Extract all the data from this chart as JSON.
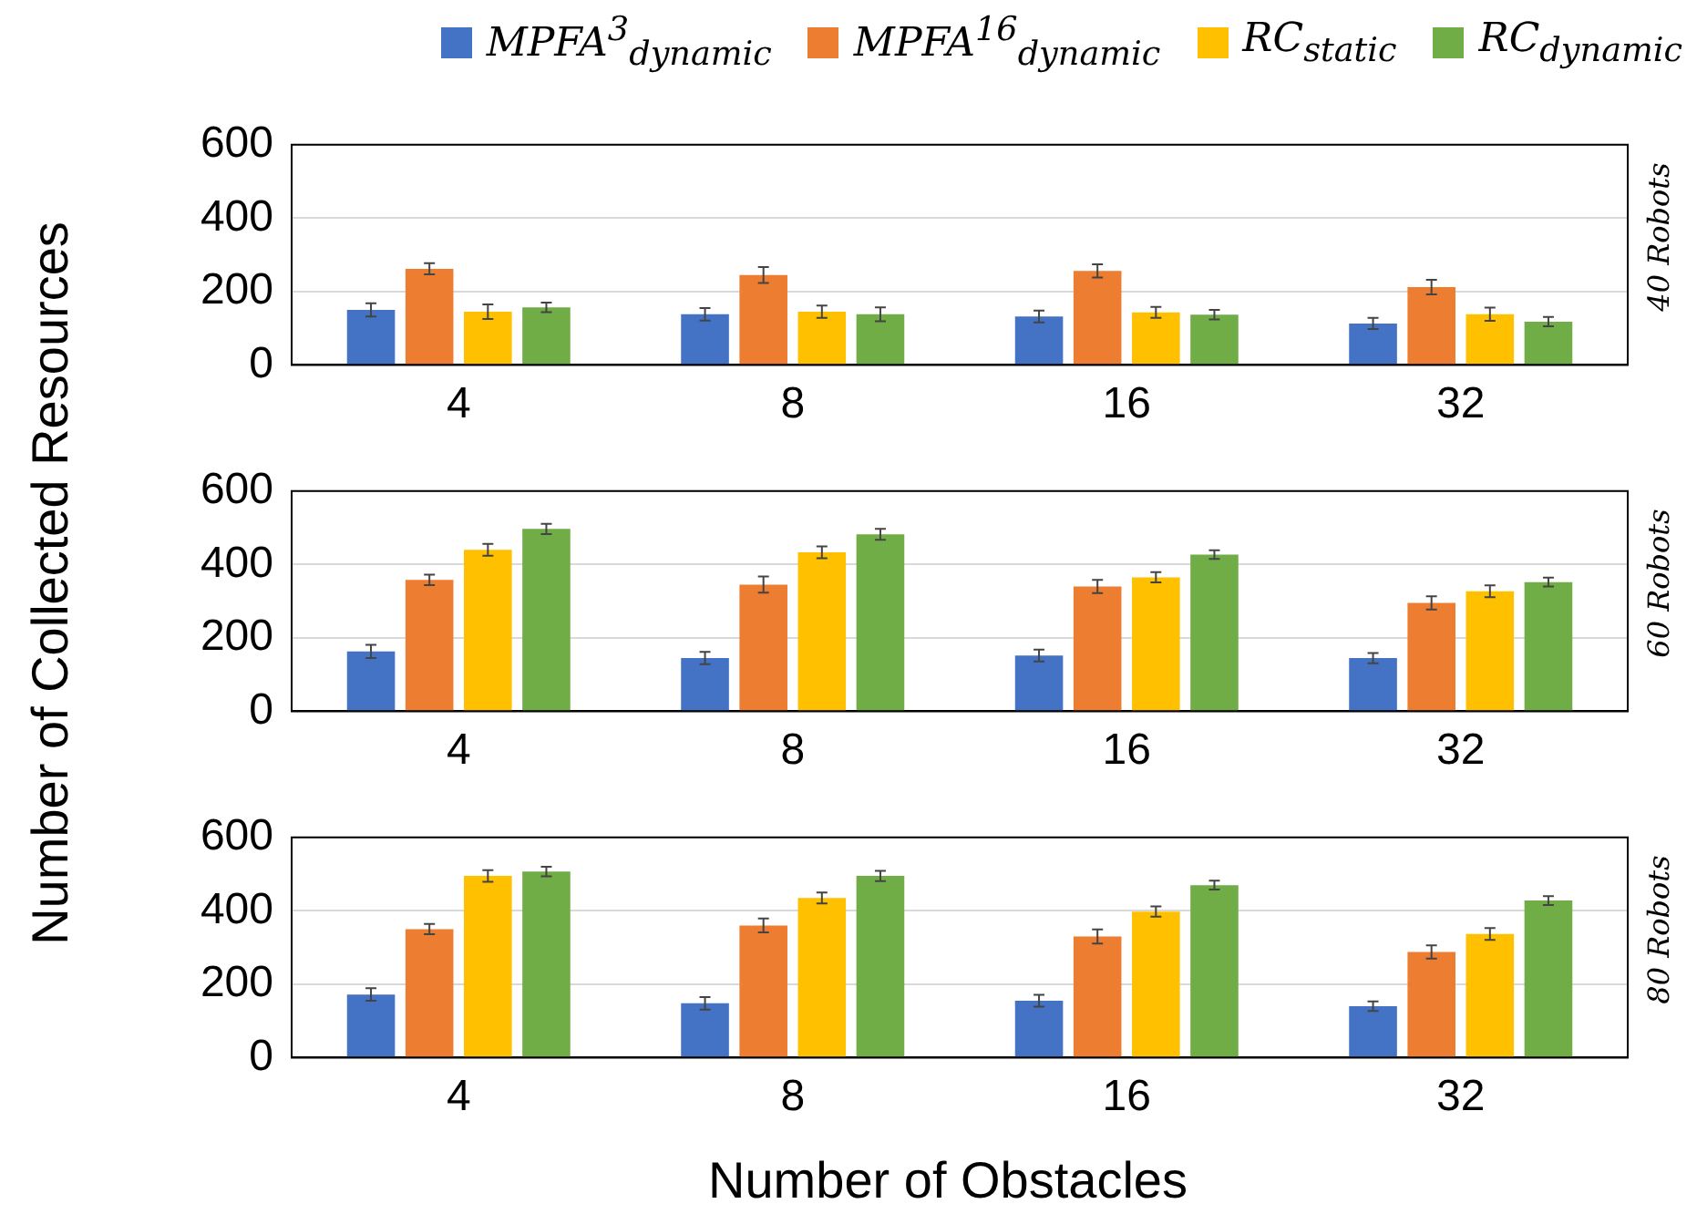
{
  "chart_data": [
    {
      "type": "bar",
      "categories": [
        "4",
        "8",
        "16",
        "32"
      ],
      "y2label": "40 Robots",
      "ylim": [
        0,
        600
      ],
      "yticks": [
        0,
        200,
        400,
        600
      ],
      "grid": "y",
      "legend": "top",
      "series": [
        {
          "name": "MPFA$^{3}$$_{dynamic}$",
          "color": "#4472c4",
          "values": [
            150,
            138,
            132,
            113
          ],
          "errors": [
            18,
            17,
            16,
            15
          ]
        },
        {
          "name": "MPFA$^{16}$$_{dynamic}$",
          "color": "#ed7d31",
          "values": [
            262,
            245,
            256,
            212
          ],
          "errors": [
            15,
            22,
            18,
            20
          ]
        },
        {
          "name": "RC$_{static}$",
          "color": "#ffc000",
          "values": [
            145,
            145,
            143,
            138
          ],
          "errors": [
            20,
            17,
            15,
            18
          ]
        },
        {
          "name": "RC$_{dynamic}$",
          "color": "#70ad47",
          "values": [
            157,
            138,
            137,
            118
          ],
          "errors": [
            13,
            19,
            13,
            13
          ]
        }
      ]
    },
    {
      "type": "bar",
      "categories": [
        "4",
        "8",
        "16",
        "32"
      ],
      "ylabel": "Number of Collected Resources",
      "y2label": "60 Robots",
      "ylim": [
        0,
        600
      ],
      "yticks": [
        0,
        200,
        400,
        600
      ],
      "grid": "y",
      "series": [
        {
          "color": "#4472c4",
          "values": [
            163,
            145,
            152,
            145
          ],
          "errors": [
            18,
            17,
            16,
            14
          ]
        },
        {
          "color": "#ed7d31",
          "values": [
            358,
            345,
            340,
            295
          ],
          "errors": [
            14,
            22,
            18,
            18
          ]
        },
        {
          "color": "#ffc000",
          "values": [
            440,
            433,
            365,
            327
          ],
          "errors": [
            16,
            16,
            14,
            16
          ]
        },
        {
          "color": "#70ad47",
          "values": [
            497,
            482,
            427,
            352
          ],
          "errors": [
            14,
            15,
            12,
            12
          ]
        }
      ]
    },
    {
      "type": "bar",
      "categories": [
        "4",
        "8",
        "16",
        "32"
      ],
      "xlabel": "Number of Obstacles",
      "y2label": "80 Robots",
      "ylim": [
        0,
        600
      ],
      "yticks": [
        0,
        200,
        400,
        600
      ],
      "grid": "y",
      "series": [
        {
          "color": "#4472c4",
          "values": [
            172,
            148,
            155,
            140
          ],
          "errors": [
            17,
            17,
            16,
            13
          ]
        },
        {
          "color": "#ed7d31",
          "values": [
            350,
            360,
            330,
            288
          ],
          "errors": [
            14,
            19,
            19,
            18
          ]
        },
        {
          "color": "#ffc000",
          "values": [
            495,
            435,
            398,
            337
          ],
          "errors": [
            16,
            15,
            14,
            16
          ]
        },
        {
          "color": "#70ad47",
          "values": [
            507,
            495,
            470,
            428
          ],
          "errors": [
            13,
            14,
            12,
            12
          ]
        }
      ]
    }
  ]
}
